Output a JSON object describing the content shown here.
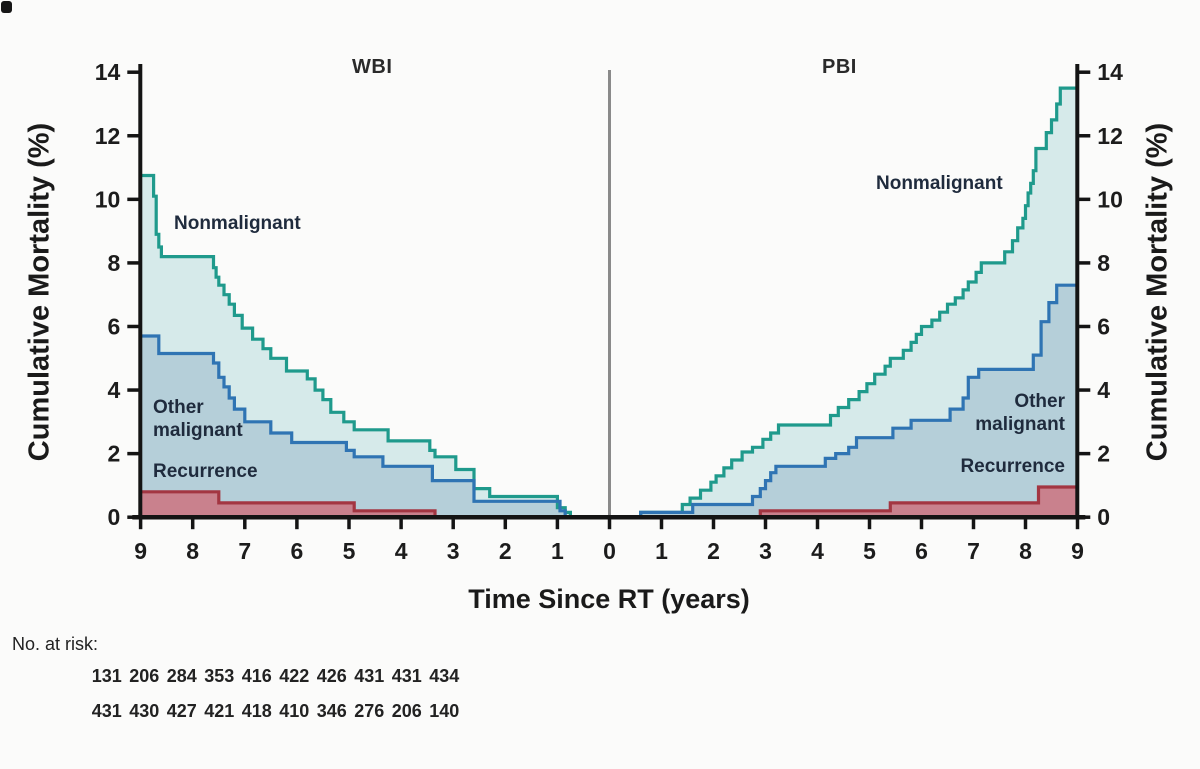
{
  "figure": {
    "panels": [
      {
        "label": "WBI"
      },
      {
        "label": "PBI"
      }
    ],
    "y_axis": {
      "title": "Cumulative Mortality (%)",
      "ticks": [
        14,
        12,
        10,
        8,
        6,
        4,
        2,
        0
      ]
    },
    "x_axis": {
      "title": "Time Since RT (years)",
      "left_ticks": [
        9,
        8,
        7,
        6,
        5,
        4,
        3,
        2,
        1
      ],
      "center_tick": 0,
      "right_ticks": [
        1,
        2,
        3,
        4,
        5,
        6,
        7,
        8,
        9
      ]
    },
    "labels": {
      "wbi_nonmalignant": "Nonmalignant",
      "pbi_nonmalignant": "Nonmalignant",
      "wbi_other_malignant": "Other\nmalignant",
      "pbi_other_malignant": "Other\nmalignant",
      "wbi_recurrence": "Recurrence",
      "pbi_recurrence": "Recurrence"
    }
  },
  "at_risk": {
    "label": "No. at risk:",
    "rows": [
      [
        "131",
        "206",
        "284",
        "353",
        "416",
        "422",
        "426",
        "431",
        "431",
        "434"
      ],
      [
        "431",
        "430",
        "427",
        "421",
        "418",
        "410",
        "346",
        "276",
        "206",
        "140"
      ]
    ]
  },
  "colors": {
    "nonmalignant_line": "#1f9a8c",
    "nonmalignant_fill": "#d6eaea",
    "other_malignant_line": "#2f74b3",
    "other_malignant_fill": "#b5cfd9",
    "recurrence_line": "#a33642",
    "recurrence_fill": "#c9818d",
    "axis": "#141414",
    "divider": "#8a8a8a",
    "label_text": "#1f2b3d"
  },
  "chart_data": {
    "type": "area",
    "subtype": "mirrored-cumulative-incidence-step",
    "xlabel": "Time Since RT (years)",
    "ylabel": "Cumulative Mortality (%)",
    "xlim": [
      0,
      9
    ],
    "ylim": [
      0,
      14
    ],
    "grid": false,
    "legend": "inline-annotations",
    "panels": [
      {
        "name": "WBI",
        "direction": "right-to-left",
        "series": [
          {
            "name": "Nonmalignant",
            "color": "#1f9a8c",
            "fill": "#d6eaea",
            "steps": [
              [
                0.75,
                0.15
              ],
              [
                0.85,
                0.3
              ],
              [
                1.0,
                0.65
              ],
              [
                2.3,
                0.9
              ],
              [
                2.6,
                1.5
              ],
              [
                2.95,
                1.9
              ],
              [
                3.35,
                2.1
              ],
              [
                3.45,
                2.4
              ],
              [
                4.25,
                2.75
              ],
              [
                4.9,
                3.0
              ],
              [
                5.1,
                3.3
              ],
              [
                5.35,
                3.7
              ],
              [
                5.5,
                4.0
              ],
              [
                5.65,
                4.35
              ],
              [
                5.8,
                4.6
              ],
              [
                6.2,
                5.0
              ],
              [
                6.5,
                5.3
              ],
              [
                6.65,
                5.6
              ],
              [
                6.85,
                5.95
              ],
              [
                7.05,
                6.35
              ],
              [
                7.2,
                6.7
              ],
              [
                7.3,
                7.0
              ],
              [
                7.4,
                7.3
              ],
              [
                7.5,
                7.55
              ],
              [
                7.55,
                7.85
              ],
              [
                7.6,
                8.2
              ],
              [
                8.6,
                8.5
              ],
              [
                8.65,
                8.9
              ],
              [
                8.7,
                10.1
              ],
              [
                8.75,
                10.75
              ]
            ]
          },
          {
            "name": "Other malignant",
            "color": "#2f74b3",
            "fill": "#b5cfd9",
            "steps": [
              [
                0.85,
                0.2
              ],
              [
                0.95,
                0.5
              ],
              [
                2.6,
                1.15
              ],
              [
                3.4,
                1.6
              ],
              [
                4.35,
                1.9
              ],
              [
                4.9,
                2.1
              ],
              [
                5.05,
                2.35
              ],
              [
                6.1,
                2.65
              ],
              [
                6.5,
                3.0
              ],
              [
                7.0,
                3.4
              ],
              [
                7.2,
                3.75
              ],
              [
                7.3,
                4.1
              ],
              [
                7.4,
                4.4
              ],
              [
                7.5,
                4.85
              ],
              [
                7.6,
                5.15
              ],
              [
                8.65,
                5.7
              ]
            ]
          },
          {
            "name": "Recurrence",
            "color": "#a33642",
            "fill": "#c9818d",
            "steps": [
              [
                3.35,
                0.2
              ],
              [
                4.9,
                0.45
              ],
              [
                7.5,
                0.8
              ]
            ]
          }
        ]
      },
      {
        "name": "PBI",
        "direction": "left-to-right",
        "series": [
          {
            "name": "Nonmalignant",
            "color": "#1f9a8c",
            "fill": "#d6eaea",
            "steps": [
              [
                0.6,
                0.15
              ],
              [
                1.4,
                0.4
              ],
              [
                1.55,
                0.6
              ],
              [
                1.75,
                0.85
              ],
              [
                1.95,
                1.1
              ],
              [
                2.05,
                1.3
              ],
              [
                2.2,
                1.55
              ],
              [
                2.35,
                1.8
              ],
              [
                2.55,
                2.05
              ],
              [
                2.75,
                2.2
              ],
              [
                2.95,
                2.45
              ],
              [
                3.1,
                2.65
              ],
              [
                3.25,
                2.9
              ],
              [
                4.25,
                3.2
              ],
              [
                4.4,
                3.45
              ],
              [
                4.6,
                3.7
              ],
              [
                4.8,
                3.95
              ],
              [
                4.95,
                4.2
              ],
              [
                5.1,
                4.5
              ],
              [
                5.3,
                4.75
              ],
              [
                5.4,
                5.0
              ],
              [
                5.65,
                5.25
              ],
              [
                5.8,
                5.5
              ],
              [
                5.9,
                5.75
              ],
              [
                6.0,
                6.0
              ],
              [
                6.2,
                6.2
              ],
              [
                6.35,
                6.45
              ],
              [
                6.5,
                6.7
              ],
              [
                6.65,
                6.9
              ],
              [
                6.8,
                7.15
              ],
              [
                6.9,
                7.4
              ],
              [
                7.05,
                7.7
              ],
              [
                7.15,
                8.0
              ],
              [
                7.6,
                8.35
              ],
              [
                7.75,
                8.7
              ],
              [
                7.85,
                9.1
              ],
              [
                7.95,
                9.4
              ],
              [
                8.0,
                9.8
              ],
              [
                8.05,
                10.2
              ],
              [
                8.1,
                10.5
              ],
              [
                8.15,
                10.9
              ],
              [
                8.2,
                11.6
              ],
              [
                8.4,
                12.1
              ],
              [
                8.5,
                12.5
              ],
              [
                8.6,
                13.0
              ],
              [
                8.67,
                13.5
              ]
            ]
          },
          {
            "name": "Other malignant",
            "color": "#2f74b3",
            "fill": "#b5cfd9",
            "steps": [
              [
                0.6,
                0.15
              ],
              [
                1.6,
                0.4
              ],
              [
                2.75,
                0.65
              ],
              [
                2.9,
                0.9
              ],
              [
                3.0,
                1.15
              ],
              [
                3.1,
                1.4
              ],
              [
                3.2,
                1.6
              ],
              [
                4.15,
                1.85
              ],
              [
                4.35,
                2.0
              ],
              [
                4.6,
                2.2
              ],
              [
                4.75,
                2.5
              ],
              [
                5.45,
                2.8
              ],
              [
                5.8,
                3.05
              ],
              [
                6.55,
                3.4
              ],
              [
                6.8,
                3.75
              ],
              [
                6.9,
                4.4
              ],
              [
                7.1,
                4.65
              ],
              [
                8.15,
                5.1
              ],
              [
                8.3,
                6.15
              ],
              [
                8.45,
                6.75
              ],
              [
                8.6,
                7.3
              ]
            ]
          },
          {
            "name": "Recurrence",
            "color": "#a33642",
            "fill": "#c9818d",
            "steps": [
              [
                2.9,
                0.2
              ],
              [
                5.4,
                0.45
              ],
              [
                8.25,
                0.95
              ]
            ]
          }
        ]
      }
    ]
  }
}
